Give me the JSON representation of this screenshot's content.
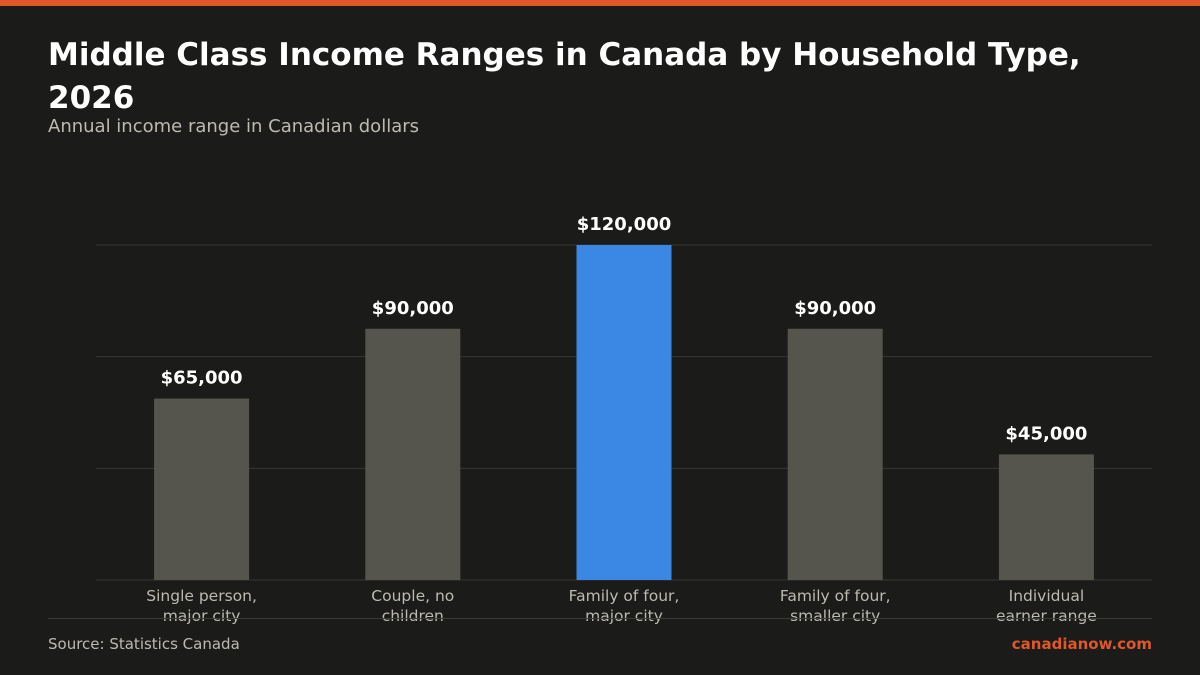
{
  "header": {
    "title": "Middle Class Income Ranges in Canada by Household Type, 2026",
    "subtitle": "Annual income range in Canadian dollars"
  },
  "footer": {
    "source": "Source: Statistics Canada",
    "brand": "canadianow.com"
  },
  "colors": {
    "accent": "#e0572a",
    "highlight_bar": "#3a88e4",
    "bar": "#55544d",
    "value_label": "#ffffff",
    "category_label": "#bdbab1",
    "grid": "#363633"
  },
  "chart_data": {
    "type": "bar",
    "title": "Middle Class Income Ranges in Canada by Household Type, 2026",
    "subtitle": "Annual income range in Canadian dollars",
    "categories": [
      [
        "Single person,",
        "major city"
      ],
      [
        "Couple, no",
        "children"
      ],
      [
        "Family of four,",
        "major city"
      ],
      [
        "Family of four,",
        "smaller city"
      ],
      [
        "Individual",
        "earner range"
      ]
    ],
    "values": [
      65000,
      90000,
      120000,
      90000,
      45000
    ],
    "value_labels": [
      "$65,000",
      "$90,000",
      "$120,000",
      "$90,000",
      "$45,000"
    ],
    "highlight_index": 2,
    "ylim": [
      0,
      120000
    ],
    "grid": true,
    "gridlines": [
      0,
      40000,
      80000,
      120000
    ],
    "xlabel": "",
    "ylabel": ""
  }
}
